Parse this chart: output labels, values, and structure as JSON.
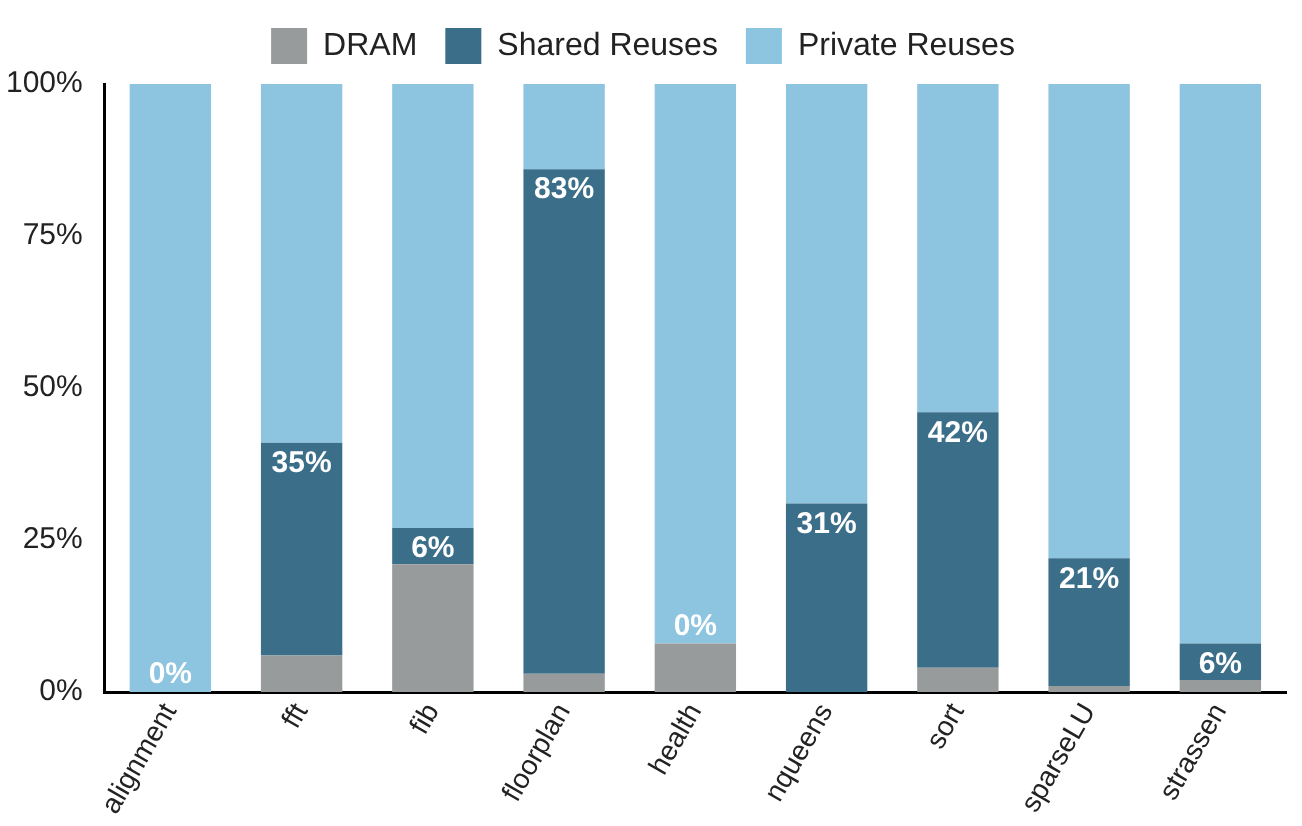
{
  "chart_data": {
    "type": "bar",
    "stacked": true,
    "categories": [
      "alignment",
      "fft",
      "fib",
      "floorplan",
      "health",
      "nqueens",
      "sort",
      "sparseLU",
      "strassen"
    ],
    "series": [
      {
        "name": "DRAM",
        "color": "#979b9b",
        "values": [
          0,
          6,
          21,
          3,
          8,
          0,
          4,
          1,
          2
        ]
      },
      {
        "name": "Shared Reuses",
        "color": "#3b6f89",
        "values": [
          0,
          35,
          6,
          83,
          0,
          31,
          42,
          21,
          6
        ],
        "value_labels": [
          null,
          "35%",
          "6%",
          "83%",
          null,
          "31%",
          "42%",
          "21%",
          "6%"
        ]
      },
      {
        "name": "Private Reuses",
        "color": "#8dc4df",
        "values": [
          100,
          59,
          73,
          14,
          92,
          69,
          54,
          78,
          92
        ]
      }
    ],
    "ylim": [
      0,
      100
    ],
    "yticks": [
      {
        "value": 0,
        "label": "0%"
      },
      {
        "value": 25,
        "label": "25%"
      },
      {
        "value": 50,
        "label": "50%"
      },
      {
        "value": 75,
        "label": "75%"
      },
      {
        "value": 100,
        "label": "100%"
      }
    ],
    "annotations": [
      {
        "text": "0%",
        "x": "alignment",
        "y": 0
      },
      {
        "text": "0%",
        "x": "health",
        "y": 8
      }
    ],
    "grid": false,
    "legend": "top"
  }
}
